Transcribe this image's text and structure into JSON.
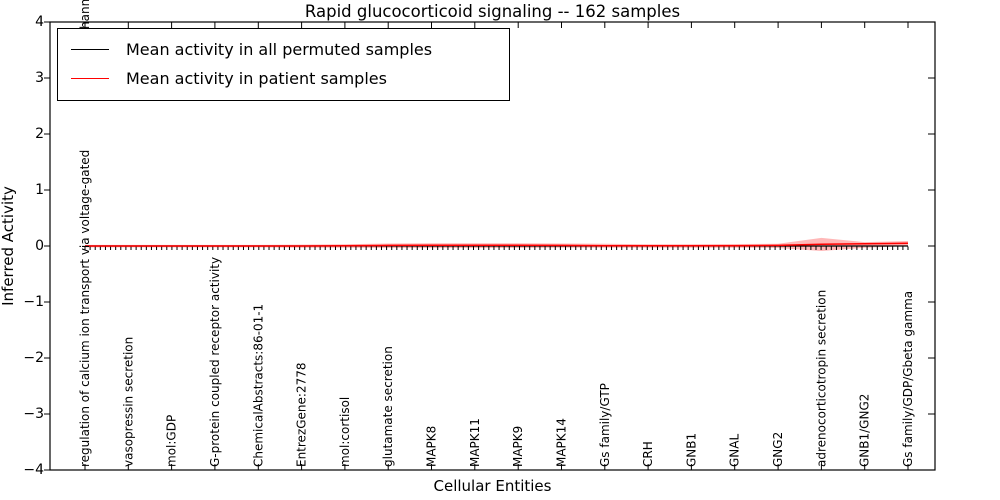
{
  "chart_data": {
    "type": "line",
    "title": "Rapid glucocorticoid signaling -- 162 samples",
    "xlabel": "Cellular Entities",
    "ylabel": "Inferred Activity",
    "ylim": [
      -4,
      4
    ],
    "yticks": [
      "4",
      "3",
      "2",
      "1",
      "0",
      "−1",
      "−2",
      "−3",
      "−4"
    ],
    "grid": false,
    "legend_position": "upper left",
    "categories": [
      "regulation of calcium ion transport via voltage-gated",
      "vasopressin secretion",
      "mol:GDP",
      "G-protein coupled receptor activity",
      "ChemicalAbstracts:86-01-1",
      "EntrezGene:2778",
      "mol:cortisol",
      "glutamate secretion",
      "MAPK8",
      "MAPK11",
      "MAPK9",
      "MAPK14",
      "Gs family/GTP",
      "CRH",
      "GNB1",
      "GNAL",
      "GNG2",
      "adrenocorticotropin secretion",
      "GNB1/GNG2",
      "Gs family/GDP/Gbeta gamma"
    ],
    "first_category_top_fragment": "hannel",
    "series": [
      {
        "name": "Mean activity in all permuted samples",
        "color": "#000000",
        "values": [
          0,
          0,
          0,
          0,
          0,
          0,
          0,
          0,
          0,
          0,
          0,
          0,
          0,
          0,
          0,
          0,
          0,
          0,
          0,
          0
        ]
      },
      {
        "name": "Mean activity in patient samples",
        "color": "#ff0000",
        "values": [
          0,
          0,
          0,
          0,
          0,
          0,
          0.005,
          0.01,
          0.015,
          0.015,
          0.015,
          0.01,
          0.005,
          0.005,
          0.005,
          0.005,
          0.01,
          0.03,
          0.04,
          0.05
        ]
      }
    ],
    "band": {
      "series": "Mean activity in patient samples",
      "color": "#ff0000",
      "opacity": 0.28,
      "upper": [
        0.02,
        0.02,
        0.02,
        0.02,
        0.02,
        0.025,
        0.03,
        0.045,
        0.05,
        0.05,
        0.05,
        0.045,
        0.04,
        0.03,
        0.03,
        0.035,
        0.04,
        0.145,
        0.07,
        0.09
      ],
      "lower": [
        -0.025,
        -0.025,
        -0.025,
        -0.025,
        -0.025,
        -0.03,
        -0.03,
        -0.035,
        -0.035,
        -0.035,
        -0.035,
        -0.03,
        -0.03,
        -0.03,
        -0.03,
        -0.03,
        -0.035,
        -0.09,
        -0.03,
        0.0
      ]
    },
    "entity_tick_count": 162
  }
}
